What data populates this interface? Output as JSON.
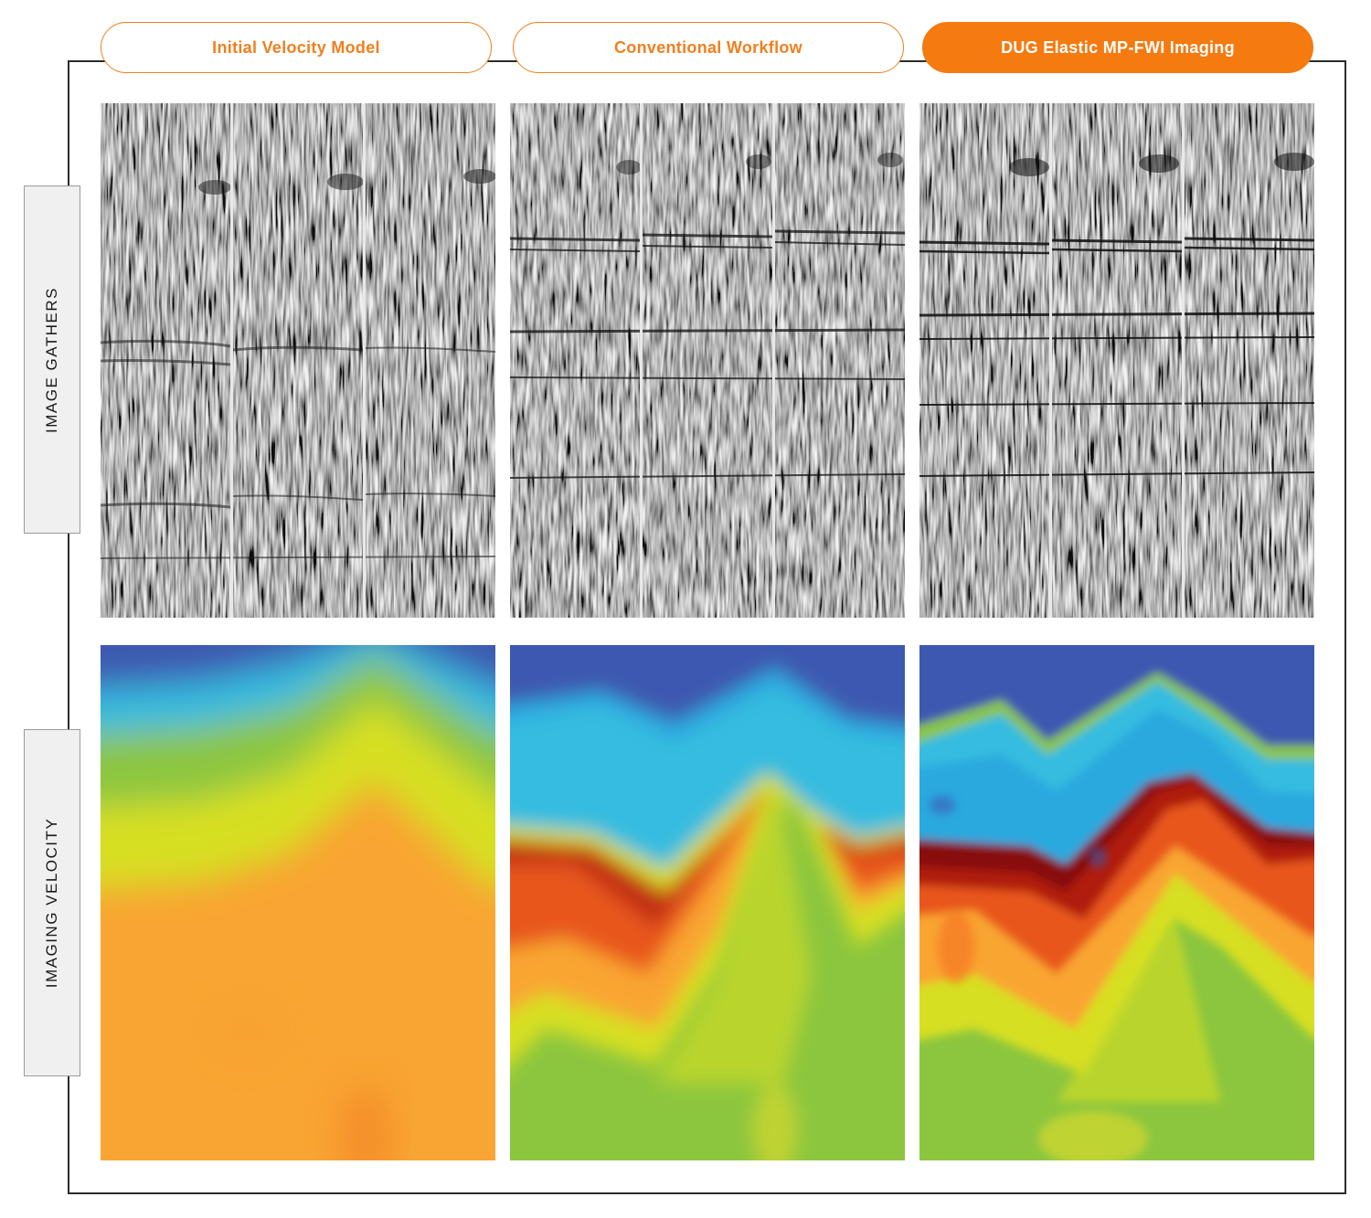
{
  "tabs": [
    {
      "label": "Initial Velocity Model",
      "active": false
    },
    {
      "label": "Conventional Workflow",
      "active": false
    },
    {
      "label": "DUG Elastic MP-FWI Imaging",
      "active": true
    }
  ],
  "rows": {
    "gathers_label": "IMAGE GATHERS",
    "velocity_label": "IMAGING VELOCITY"
  },
  "colors": {
    "accent_orange": "#f57a10",
    "frame": "#2b2b2b",
    "velocity_scale": [
      "#3d58b0",
      "#29a9df",
      "#36bce0",
      "#8cc63f",
      "#d7df23",
      "#f9a533",
      "#e8561c",
      "#b01e0f",
      "#7e0c0c"
    ]
  }
}
